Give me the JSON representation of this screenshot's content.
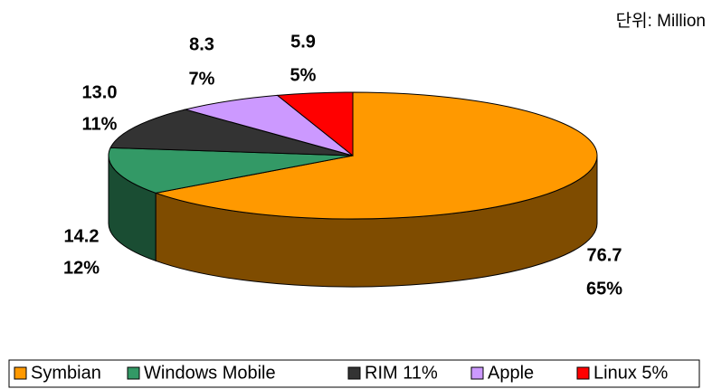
{
  "chart_data": {
    "type": "pie3d",
    "unit_label": "단위: Million",
    "categories": [
      "Symbian",
      "Windows Mobile",
      "RIM 11%",
      "Apple",
      "Linux 5%"
    ],
    "values": [
      76.7,
      14.2,
      13.0,
      8.3,
      5.9
    ],
    "value_labels": [
      "76.7",
      "14.2",
      "13.0",
      "8.3",
      "5.9"
    ],
    "percents": [
      65,
      12,
      11,
      7,
      5
    ],
    "percent_labels": [
      "65%",
      "12%",
      "11%",
      "7%",
      "5%"
    ],
    "colors": [
      "#ff9900",
      "#339966",
      "#333333",
      "#cc99ff",
      "#ff0000"
    ],
    "side_colors": [
      "#7f4c00",
      "#1a4d33",
      "#1a1a1a",
      "#664c80",
      "#800000"
    ],
    "legend": "bottom"
  }
}
